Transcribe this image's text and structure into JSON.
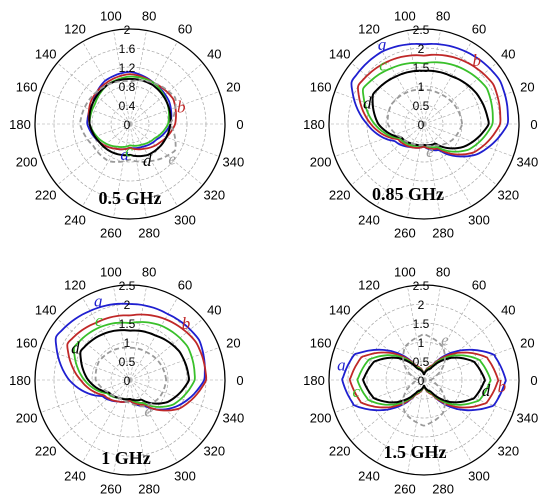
{
  "colors": {
    "a": "#1f1fd0",
    "b": "#c02828",
    "c": "#39c02a",
    "d": "#000000",
    "e": "#9a9a9a"
  },
  "chart_data": [
    {
      "type": "polar",
      "title": "0.5 GHz",
      "angle_ticks": [
        "0",
        "20",
        "40",
        "60",
        "80",
        "100",
        "120",
        "140",
        "160",
        "180",
        "200",
        "220",
        "240",
        "260",
        "280",
        "300",
        "320",
        "340"
      ],
      "r_ticks": [
        "0",
        "0.4",
        "0.8",
        "1.2",
        "1.6",
        "2"
      ],
      "rlim": [
        0,
        2
      ],
      "theta": [
        0,
        30,
        60,
        90,
        120,
        150,
        180,
        210,
        240,
        270,
        300,
        330
      ],
      "series": [
        {
          "name": "a",
          "r": [
            0.85,
            0.95,
            1.0,
            1.1,
            1.05,
            0.9,
            0.9,
            0.75,
            0.6,
            0.5,
            0.55,
            0.65
          ],
          "label_angle": 260
        },
        {
          "name": "b",
          "r": [
            0.95,
            1.05,
            1.0,
            1.05,
            1.0,
            0.95,
            0.85,
            0.75,
            0.6,
            0.5,
            0.6,
            0.75
          ],
          "label_angle": 18
        },
        {
          "name": "c",
          "r": [
            0.8,
            0.9,
            1.0,
            1.0,
            0.95,
            0.85,
            0.85,
            0.7,
            0.55,
            0.45,
            0.5,
            0.6
          ],
          "label_angle": 268
        },
        {
          "name": "d",
          "r": [
            0.85,
            0.9,
            0.95,
            0.95,
            0.95,
            0.9,
            0.85,
            0.75,
            0.7,
            0.65,
            0.75,
            0.8
          ],
          "label_angle": 295
        },
        {
          "name": "e",
          "r": [
            0.85,
            1.1,
            1.0,
            0.9,
            0.95,
            1.0,
            1.05,
            0.9,
            0.9,
            0.75,
            0.9,
            1.1
          ],
          "label_angle": 320
        }
      ]
    },
    {
      "type": "polar",
      "title": "0.85 GHz",
      "angle_ticks": [
        "0",
        "20",
        "40",
        "60",
        "80",
        "100",
        "120",
        "140",
        "160",
        "180",
        "200",
        "220",
        "240",
        "260",
        "280",
        "300",
        "320",
        "340"
      ],
      "r_ticks": [
        "0",
        "0.5",
        "1",
        "1.5",
        "2",
        "2.5"
      ],
      "rlim": [
        0,
        2.5
      ],
      "theta": [
        0,
        30,
        60,
        90,
        120,
        150,
        180,
        210,
        240,
        270,
        300,
        330
      ],
      "series": [
        {
          "name": "a",
          "r": [
            2.2,
            2.3,
            2.2,
            2.1,
            2.2,
            2.2,
            1.5,
            0.9,
            0.7,
            0.6,
            0.8,
            1.6
          ],
          "label_angle": 118
        },
        {
          "name": "b",
          "r": [
            2.0,
            2.1,
            1.95,
            1.8,
            1.9,
            2.0,
            1.4,
            0.8,
            0.7,
            0.6,
            0.75,
            1.5
          ],
          "label_angle": 50
        },
        {
          "name": "c",
          "r": [
            1.8,
            1.9,
            1.75,
            1.6,
            1.7,
            1.85,
            1.3,
            0.75,
            0.65,
            0.55,
            0.7,
            1.35
          ],
          "label_angle": 125
        },
        {
          "name": "d",
          "r": [
            1.7,
            1.6,
            1.45,
            1.4,
            1.45,
            1.55,
            1.2,
            0.7,
            0.6,
            0.55,
            0.6,
            1.2
          ],
          "label_angle": 160
        },
        {
          "name": "e",
          "r": [
            1.0,
            0.95,
            0.9,
            0.9,
            0.95,
            1.0,
            0.95,
            0.7,
            0.6,
            0.55,
            0.65,
            0.85
          ],
          "label_angle": 282
        }
      ]
    },
    {
      "type": "polar",
      "title": "1 GHz",
      "angle_ticks": [
        "0",
        "20",
        "40",
        "60",
        "80",
        "100",
        "120",
        "140",
        "160",
        "180",
        "200",
        "220",
        "240",
        "260",
        "280",
        "300",
        "320",
        "340"
      ],
      "r_ticks": [
        "0",
        "0.5",
        "1",
        "1.5",
        "2",
        "2.5"
      ],
      "rlim": [
        0,
        2.5
      ],
      "theta": [
        0,
        30,
        60,
        90,
        120,
        150,
        180,
        210,
        240,
        270,
        300,
        330
      ],
      "series": [
        {
          "name": "a",
          "r": [
            1.95,
            2.1,
            2.0,
            2.0,
            2.1,
            2.25,
            1.6,
            0.85,
            0.65,
            0.55,
            0.8,
            1.4
          ],
          "label_angle": 112
        },
        {
          "name": "b",
          "r": [
            2.0,
            2.0,
            1.85,
            1.7,
            1.75,
            1.9,
            1.3,
            0.8,
            0.65,
            0.55,
            0.75,
            1.5
          ],
          "label_angle": 45
        },
        {
          "name": "c",
          "r": [
            1.7,
            1.75,
            1.65,
            1.5,
            1.6,
            1.7,
            1.2,
            0.7,
            0.55,
            0.5,
            0.7,
            1.3
          ],
          "label_angle": 118
        },
        {
          "name": "d",
          "r": [
            1.55,
            1.5,
            1.35,
            1.3,
            1.4,
            1.5,
            1.1,
            0.65,
            0.55,
            0.5,
            0.6,
            1.15
          ],
          "label_angle": 150
        },
        {
          "name": "e",
          "r": [
            0.95,
            0.9,
            0.85,
            0.85,
            0.9,
            0.95,
            0.9,
            0.65,
            0.55,
            0.6,
            0.8,
            0.9
          ],
          "label_angle": 300
        }
      ]
    },
    {
      "type": "polar",
      "title": "1.5 GHz",
      "angle_ticks": [
        "0",
        "20",
        "40",
        "60",
        "80",
        "100",
        "120",
        "140",
        "160",
        "180",
        "200",
        "220",
        "240",
        "260",
        "280",
        "300",
        "320",
        "340"
      ],
      "r_ticks": [
        "0",
        "0.5",
        "1",
        "1.5",
        "2",
        "2.5"
      ],
      "rlim": [
        0,
        2.5
      ],
      "theta": [
        0,
        20,
        40,
        60,
        90,
        120,
        140,
        160,
        180,
        200,
        220,
        240,
        270,
        300,
        320,
        340
      ],
      "series": [
        {
          "name": "a",
          "r": [
            2.15,
            1.95,
            1.2,
            0.45,
            0.15,
            0.45,
            1.2,
            1.95,
            2.15,
            1.95,
            1.2,
            0.45,
            0.15,
            0.45,
            1.2,
            1.95
          ],
          "label_angle": 170
        },
        {
          "name": "b",
          "r": [
            1.95,
            1.75,
            1.1,
            0.45,
            0.15,
            0.45,
            1.1,
            1.75,
            1.95,
            1.75,
            1.1,
            0.45,
            0.15,
            0.45,
            1.1,
            1.75
          ],
          "label_angle": 355
        },
        {
          "name": "c",
          "r": [
            1.75,
            1.55,
            1.0,
            0.4,
            0.15,
            0.4,
            1.0,
            1.55,
            1.75,
            1.55,
            1.0,
            0.4,
            0.15,
            0.4,
            1.0,
            1.55
          ],
          "label_angle": 190
        },
        {
          "name": "d",
          "r": [
            1.6,
            1.4,
            0.9,
            0.35,
            0.15,
            0.35,
            0.9,
            1.4,
            1.6,
            1.4,
            0.9,
            0.35,
            0.15,
            0.35,
            0.9,
            1.4
          ],
          "label_angle": 350
        },
        {
          "name": "e",
          "r": [
            0.15,
            0.35,
            0.7,
            1.0,
            1.2,
            1.0,
            0.7,
            0.35,
            0.15,
            0.35,
            0.7,
            1.0,
            1.2,
            1.0,
            0.7,
            0.35
          ],
          "label_angle": 62
        }
      ]
    }
  ]
}
